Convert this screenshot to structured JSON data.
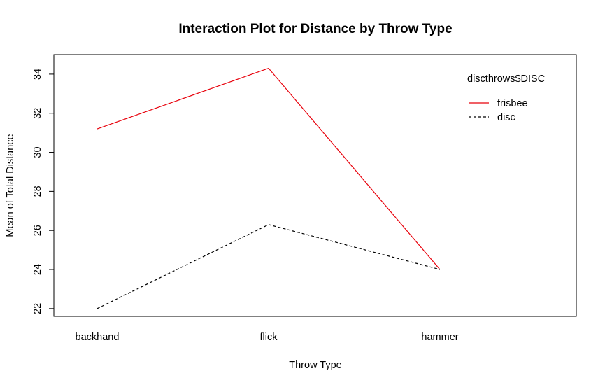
{
  "chart_data": {
    "type": "line",
    "title": "Interaction Plot for Distance by Throw Type",
    "xlabel": "Throw Type",
    "ylabel": "Mean of Total Distance",
    "categories": [
      "backhand",
      "flick",
      "hammer"
    ],
    "ylim": [
      21.6,
      35
    ],
    "yticks": [
      22,
      24,
      26,
      28,
      30,
      32,
      34
    ],
    "grid": false,
    "legend": {
      "title": "discthrows$DISC",
      "position": "top-right"
    },
    "series": [
      {
        "name": "frisbee",
        "values": [
          31.2,
          34.3,
          24.0
        ],
        "color": "#e8000b",
        "line_style": "solid"
      },
      {
        "name": "disc",
        "values": [
          22.0,
          26.3,
          24.0
        ],
        "color": "#000000",
        "line_style": "dashed"
      }
    ]
  }
}
